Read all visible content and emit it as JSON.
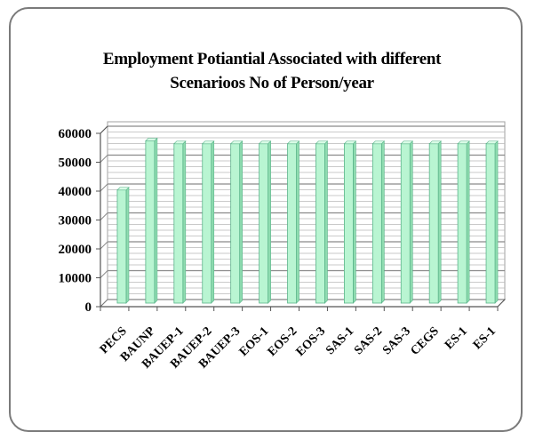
{
  "chart_data": {
    "type": "bar",
    "title_lines": [
      "Employment Potiantial Associated with different",
      "Scenarioos No of Person/year"
    ],
    "xlabel": "",
    "ylabel": "",
    "ylim": [
      0,
      60000
    ],
    "yticks": [
      "60000",
      "50000",
      "40000",
      "30000",
      "20000",
      "10000",
      "0"
    ],
    "grid": true,
    "bar_color": "#b9f5d2",
    "bar_edge_color": "#5ab48a",
    "categories": [
      "PECS",
      "BAUNP",
      "BAUEP-1",
      "BAUEP-2",
      "BAUEP-3",
      "EOS-1",
      "EOS-2",
      "EOS-3",
      "SAS-1",
      "SAS-2",
      "SAS-3",
      "CEGS",
      "ES-1",
      "ES-1"
    ],
    "values": [
      41000,
      58000,
      57000,
      57000,
      57000,
      57000,
      57000,
      57000,
      57000,
      57000,
      57000,
      57000,
      57000,
      57000
    ]
  }
}
